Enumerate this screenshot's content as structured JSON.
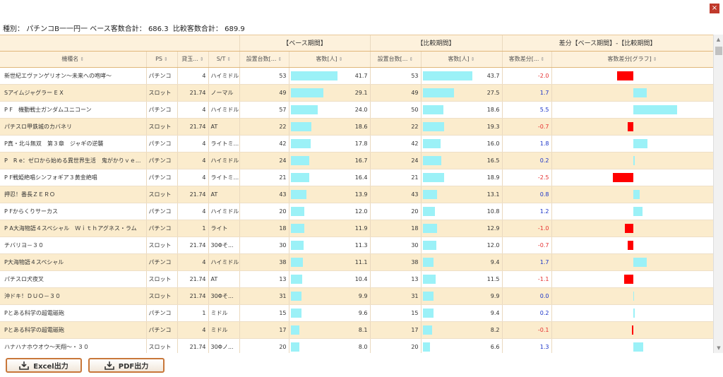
{
  "window": {
    "close_glyph": "×"
  },
  "summary": {
    "category_label": "種別：",
    "category_value": "パチンコB一一円一",
    "base_label": "ベース客数合計：",
    "base_value": "686.3",
    "compare_label": "比較客数合計：",
    "compare_value": "689.9"
  },
  "groups": {
    "base": "【ベース期間】",
    "compare": "【比較期間】",
    "diff": "差分【ベース期間】-【比較期間】"
  },
  "columns": {
    "name": "機種名",
    "ps": "PS",
    "rate": "貸玉...",
    "st": "S/T",
    "base_units": "設置台数[...",
    "base_customers": "客数[人]",
    "cmp_units": "設置台数[...",
    "cmp_customers": "客数[人]",
    "diff": "客数差分[...",
    "diff_graph": "客数差分[グラフ]"
  },
  "rows": [
    {
      "name": "新世紀エヴァンゲリオン～未来への咆哮～",
      "ps": "パチンコ",
      "rate": "4",
      "st": "ハイミドル",
      "bu": "53",
      "bc": "41.7",
      "cu": "53",
      "cc": "43.7",
      "diff": "-2.0"
    },
    {
      "name": "Sアイムジャグラー E X",
      "ps": "スロット",
      "rate": "21.74",
      "st": "ノーマル",
      "bu": "49",
      "bc": "29.1",
      "cu": "49",
      "cc": "27.5",
      "diff": "1.7"
    },
    {
      "name": "P F　機動戦士ガンダムユニコーン",
      "ps": "パチンコ",
      "rate": "4",
      "st": "ハイミドル",
      "bu": "57",
      "bc": "24.0",
      "cu": "50",
      "cc": "18.6",
      "diff": "5.5"
    },
    {
      "name": "パチスロ甲鉄城のカバネリ",
      "ps": "スロット",
      "rate": "21.74",
      "st": "AT",
      "bu": "22",
      "bc": "18.6",
      "cu": "22",
      "cc": "19.3",
      "diff": "-0.7"
    },
    {
      "name": "P真・北斗無双　第３章　ジャギの逆襲",
      "ps": "パチンコ",
      "rate": "4",
      "st": "ライトミ...",
      "bu": "42",
      "bc": "17.8",
      "cu": "42",
      "cc": "16.0",
      "diff": "1.8"
    },
    {
      "name": "P　R e：ゼロから始める異世界生活　鬼がかりｖｅ...",
      "ps": "パチンコ",
      "rate": "4",
      "st": "ハイミドル",
      "bu": "24",
      "bc": "16.7",
      "cu": "24",
      "cc": "16.5",
      "diff": "0.2"
    },
    {
      "name": "P F戦姫絶唱シンフォギア３黄金絶唱",
      "ps": "パチンコ",
      "rate": "4",
      "st": "ライトミ...",
      "bu": "21",
      "bc": "16.4",
      "cu": "21",
      "cc": "18.9",
      "diff": "-2.5"
    },
    {
      "name": "押忍！番長ＺＥＲＯ",
      "ps": "スロット",
      "rate": "21.74",
      "st": "AT",
      "bu": "43",
      "bc": "13.9",
      "cu": "43",
      "cc": "13.1",
      "diff": "0.8"
    },
    {
      "name": "P Fからくりサーカス",
      "ps": "パチンコ",
      "rate": "4",
      "st": "ハイミドル",
      "bu": "20",
      "bc": "12.0",
      "cu": "20",
      "cc": "10.8",
      "diff": "1.2"
    },
    {
      "name": "P A大海物語４スペシャル　Ｗｉｔｈアグネス・ラム",
      "ps": "パチンコ",
      "rate": "1",
      "st": "ライト",
      "bu": "18",
      "bc": "11.9",
      "cu": "18",
      "cc": "12.9",
      "diff": "-1.0"
    },
    {
      "name": "チバリヨ－３０",
      "ps": "スロット",
      "rate": "21.74",
      "st": "30Φそ...",
      "bu": "30",
      "bc": "11.3",
      "cu": "30",
      "cc": "12.0",
      "diff": "-0.7"
    },
    {
      "name": "P大海物語４スペシャル",
      "ps": "パチンコ",
      "rate": "4",
      "st": "ハイミドル",
      "bu": "38",
      "bc": "11.1",
      "cu": "38",
      "cc": "9.4",
      "diff": "1.7"
    },
    {
      "name": "パチスロ犬夜叉",
      "ps": "スロット",
      "rate": "21.74",
      "st": "AT",
      "bu": "13",
      "bc": "10.4",
      "cu": "13",
      "cc": "11.5",
      "diff": "-1.1"
    },
    {
      "name": "沖ドキ！ＤＵＯ－３０",
      "ps": "スロット",
      "rate": "21.74",
      "st": "30Φそ...",
      "bu": "31",
      "bc": "9.9",
      "cu": "31",
      "cc": "9.9",
      "diff": "0.0"
    },
    {
      "name": "Pとある科学の超電磁砲",
      "ps": "パチンコ",
      "rate": "1",
      "st": "ミドル",
      "bu": "15",
      "bc": "9.6",
      "cu": "15",
      "cc": "9.4",
      "diff": "0.2"
    },
    {
      "name": "Pとある科学の超電磁砲",
      "ps": "パチンコ",
      "rate": "4",
      "st": "ミドル",
      "bu": "17",
      "bc": "8.1",
      "cu": "17",
      "cc": "8.2",
      "diff": "-0.1"
    },
    {
      "name": "ハナハナホウオウ～天翔～・３０",
      "ps": "スロット",
      "rate": "21.74",
      "st": "30Φノ...",
      "bu": "20",
      "bc": "8.0",
      "cu": "20",
      "cc": "6.6",
      "diff": "1.3"
    }
  ],
  "scale": {
    "customers_max": 43.7,
    "diff_max": 5.5
  },
  "colors": {
    "bar": "#9bf1f7",
    "neg_bar": "#ff0000",
    "pos_text": "#1a33c8",
    "neg_text": "#e53030"
  },
  "buttons": {
    "excel": "Excel出力",
    "pdf": "PDF出力",
    "icon": "download-icon"
  }
}
